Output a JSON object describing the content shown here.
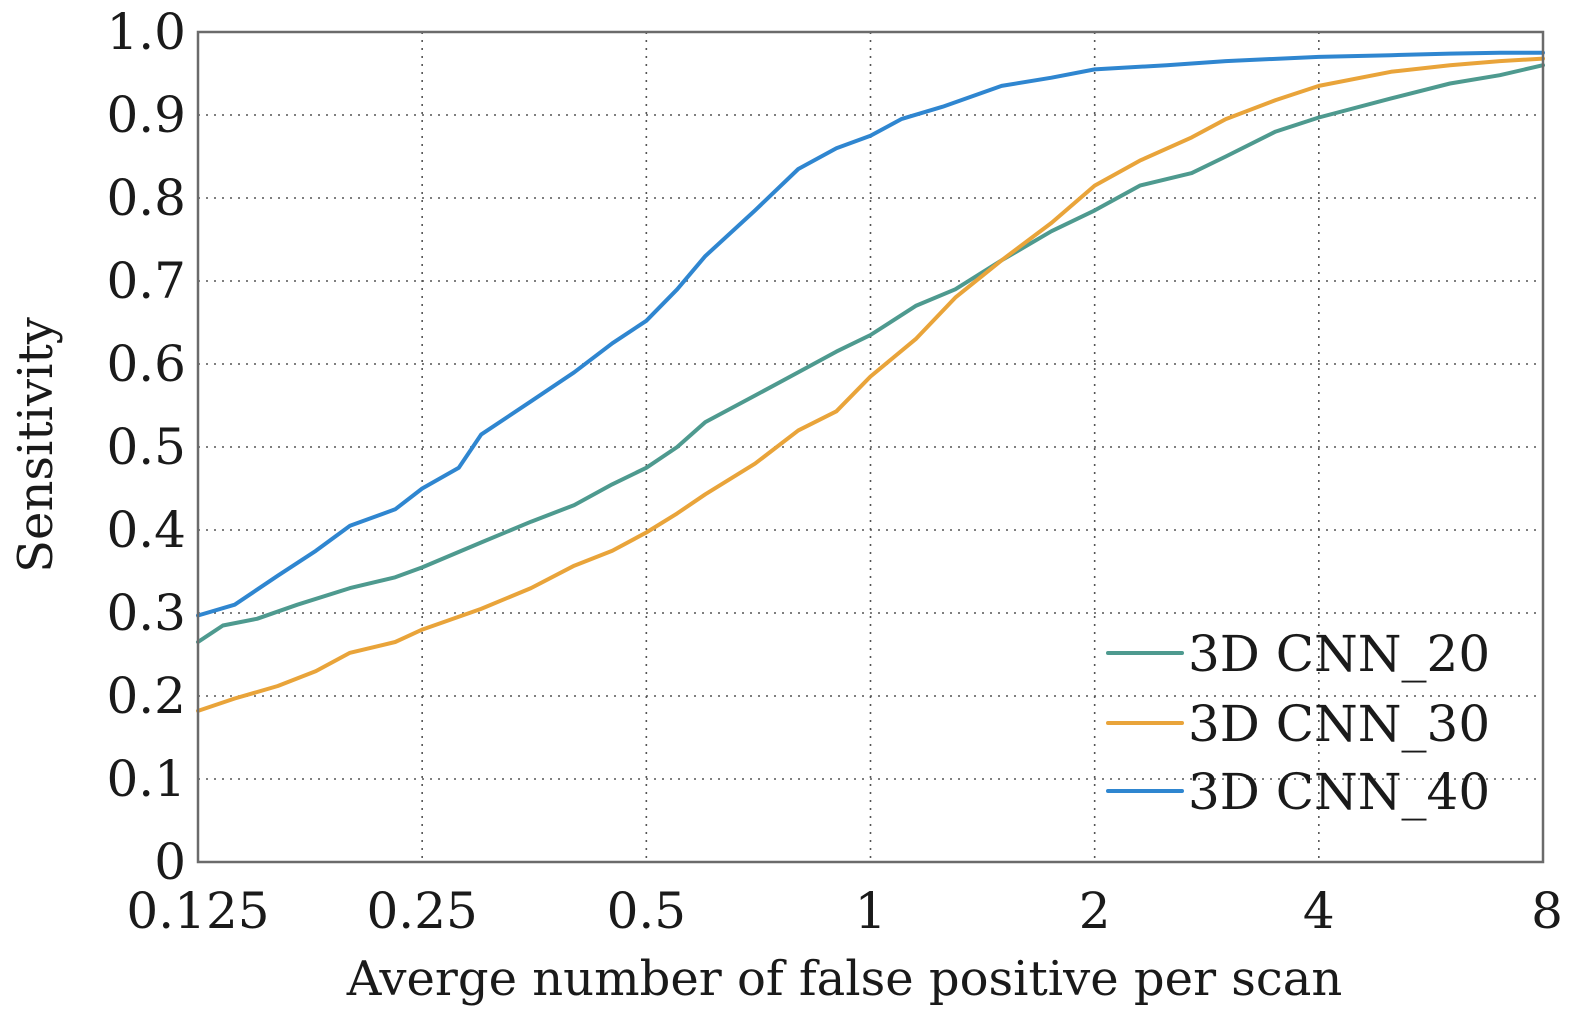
{
  "chart_data": {
    "type": "line",
    "xlabel": "Averge number of false positive per scan",
    "ylabel": "Sensitivity",
    "x_scale": "log2",
    "xlim": [
      0.125,
      8
    ],
    "ylim": [
      0,
      1.0
    ],
    "grid": true,
    "legend_position": "bottom-right",
    "x_ticks": [
      "0.125",
      "0.25",
      "0.5",
      "1",
      "2",
      "4",
      "8"
    ],
    "x_tick_values": [
      0.125,
      0.25,
      0.5,
      1,
      2,
      4,
      8
    ],
    "y_ticks": [
      "0",
      "0.1",
      "0.2",
      "0.3",
      "0.4",
      "0.5",
      "0.6",
      "0.7",
      "0.8",
      "0.9",
      "1.0"
    ],
    "y_tick_values": [
      0,
      0.1,
      0.2,
      0.3,
      0.4,
      0.5,
      0.6,
      0.7,
      0.8,
      0.9,
      1.0
    ],
    "series": [
      {
        "name": "3D CNN_20",
        "color": "#4e9a8f",
        "x": [
          0.125,
          0.135,
          0.15,
          0.17,
          0.2,
          0.23,
          0.25,
          0.3,
          0.35,
          0.4,
          0.45,
          0.5,
          0.55,
          0.6,
          0.7,
          0.8,
          0.9,
          1.0,
          1.15,
          1.3,
          1.5,
          1.75,
          2.0,
          2.3,
          2.7,
          3.0,
          3.5,
          4.0,
          5.0,
          6.0,
          7.0,
          8.0
        ],
        "y": [
          0.265,
          0.285,
          0.293,
          0.31,
          0.33,
          0.343,
          0.355,
          0.385,
          0.41,
          0.43,
          0.455,
          0.475,
          0.5,
          0.53,
          0.562,
          0.59,
          0.615,
          0.635,
          0.67,
          0.69,
          0.725,
          0.76,
          0.785,
          0.815,
          0.83,
          0.85,
          0.88,
          0.897,
          0.92,
          0.938,
          0.948,
          0.96
        ]
      },
      {
        "name": "3D CNN_30",
        "color": "#e9a43a",
        "x": [
          0.125,
          0.14,
          0.16,
          0.18,
          0.2,
          0.23,
          0.25,
          0.3,
          0.35,
          0.4,
          0.45,
          0.5,
          0.55,
          0.6,
          0.7,
          0.8,
          0.9,
          1.0,
          1.15,
          1.3,
          1.5,
          1.75,
          2.0,
          2.3,
          2.7,
          3.0,
          3.5,
          4.0,
          5.0,
          6.0,
          7.0,
          8.0
        ],
        "y": [
          0.182,
          0.197,
          0.212,
          0.23,
          0.252,
          0.265,
          0.28,
          0.305,
          0.33,
          0.357,
          0.375,
          0.397,
          0.42,
          0.443,
          0.48,
          0.52,
          0.543,
          0.585,
          0.63,
          0.68,
          0.725,
          0.77,
          0.815,
          0.845,
          0.873,
          0.895,
          0.918,
          0.935,
          0.952,
          0.96,
          0.965,
          0.968
        ]
      },
      {
        "name": "3D CNN_40",
        "color": "#2f86d0",
        "x": [
          0.125,
          0.14,
          0.16,
          0.18,
          0.2,
          0.23,
          0.25,
          0.28,
          0.3,
          0.35,
          0.4,
          0.45,
          0.5,
          0.55,
          0.6,
          0.7,
          0.8,
          0.9,
          1.0,
          1.1,
          1.25,
          1.5,
          1.75,
          2.0,
          2.5,
          3.0,
          4.0,
          5.0,
          6.0,
          7.0,
          8.0
        ],
        "y": [
          0.297,
          0.31,
          0.345,
          0.375,
          0.405,
          0.425,
          0.45,
          0.475,
          0.515,
          0.555,
          0.59,
          0.625,
          0.652,
          0.69,
          0.73,
          0.785,
          0.835,
          0.86,
          0.875,
          0.895,
          0.91,
          0.935,
          0.945,
          0.955,
          0.96,
          0.965,
          0.97,
          0.972,
          0.974,
          0.975,
          0.975
        ]
      }
    ]
  }
}
